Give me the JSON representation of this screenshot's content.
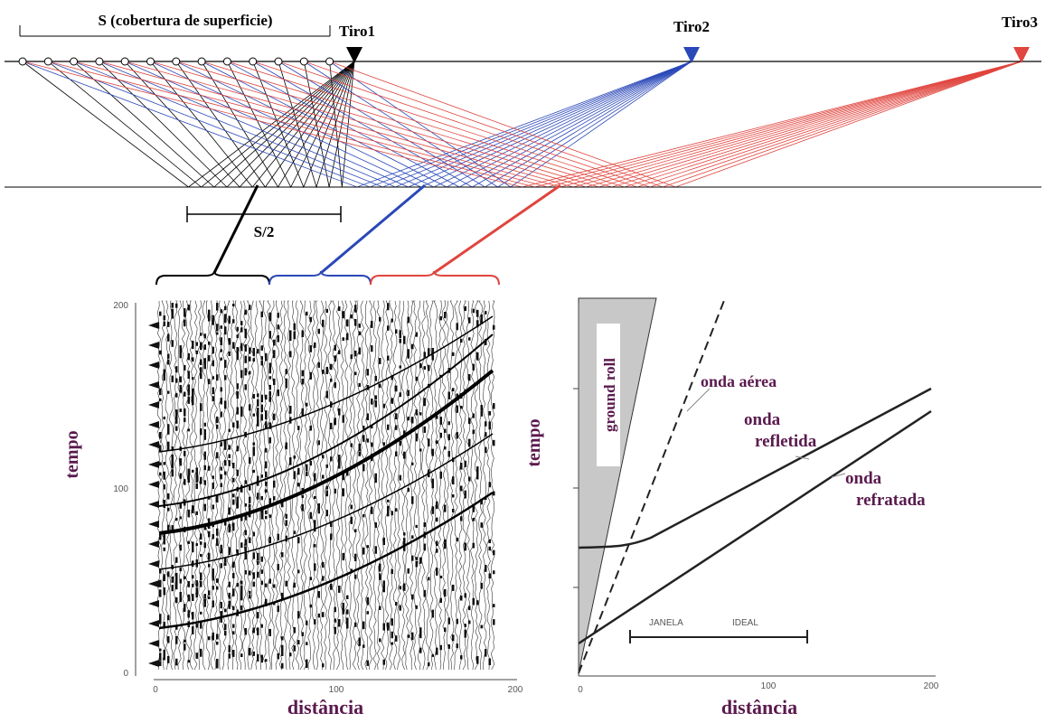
{
  "survey": {
    "coverage_label": "S (cobertura de superficie)",
    "shots": [
      "Tiro1",
      "Tiro2",
      "Tiro3"
    ],
    "half_coverage_label": "S/2"
  },
  "seismogram": {
    "y_axis_label": "tempo",
    "x_axis_label": "distância",
    "y_ticks": [
      "200",
      "100",
      "0"
    ],
    "x_ticks": [
      "0",
      "100",
      "200"
    ]
  },
  "schematic": {
    "y_axis_label": "tempo",
    "x_axis_label": "distância",
    "x_ticks": [
      "0",
      "100",
      "200"
    ],
    "ground_roll": "ground roll",
    "air_wave": "onda aérea",
    "reflected_wave": "onda refletida",
    "refracted_wave": "onda refratada",
    "window": [
      "JANELA",
      "IDEAL"
    ]
  }
}
